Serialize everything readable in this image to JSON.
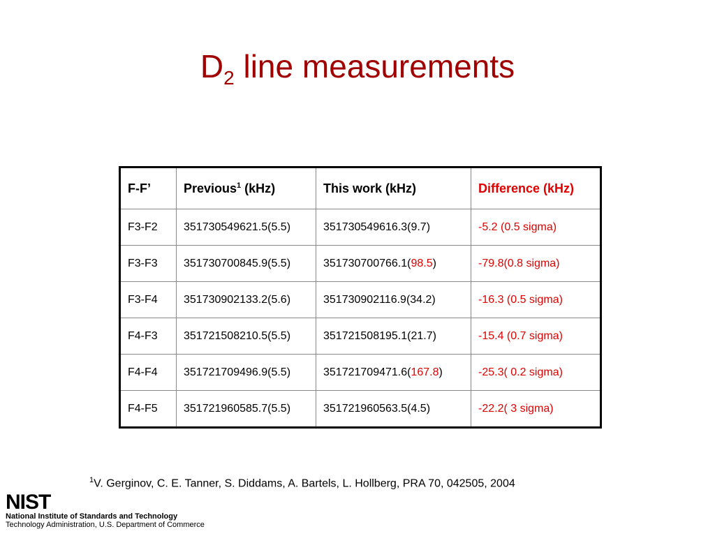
{
  "title": {
    "text": "D",
    "sub": "2",
    "rest": " line measurements"
  },
  "table": {
    "header": [
      "F-F’",
      {
        "text": "Previous",
        "sup": "1",
        "rest": " (kHz)"
      },
      "This work (kHz)",
      "Difference (kHz)"
    ],
    "rows": [
      [
        "F3-F2",
        "351730549621.5(5.5)",
        "351730549616.3(9.7)",
        "-5.2 (0.5 sigma)"
      ],
      [
        "F3-F3",
        "351730700845.9(5.5)",
        {
          "text": "351730700766.1(",
          "red": "98.5",
          "rest": ")"
        },
        "-79.8(0.8 sigma)"
      ],
      [
        "F3-F4",
        "351730902133.2(5.6)",
        "351730902116.9(34.2)",
        "-16.3 (0.5 sigma)"
      ],
      [
        "F4-F3",
        "351721508210.5(5.5)",
        "351721508195.1(21.7)",
        "-15.4 (0.7 sigma)"
      ],
      [
        "F4-F4",
        "351721709496.9(5.5)",
        {
          "text": "351721709471.6(",
          "red": "167.8",
          "rest": ")"
        },
        "-25.3( 0.2 sigma)"
      ],
      [
        "F4-F5",
        "351721960585.7(5.5)",
        "351721960563.5(4.5)",
        "-22.2( 3 sigma)"
      ]
    ]
  },
  "footnote": {
    "mark": "1",
    "text": "V. Gerginov, C. E. Tanner, S. Diddams, A. Bartels, L. Hollberg, PRA 70, 042505, 2004"
  },
  "logo": {
    "mark": "NIST",
    "line1": "National Institute of Standards and Technology",
    "line2": "Technology Administration, U.S. Department of Commerce"
  }
}
